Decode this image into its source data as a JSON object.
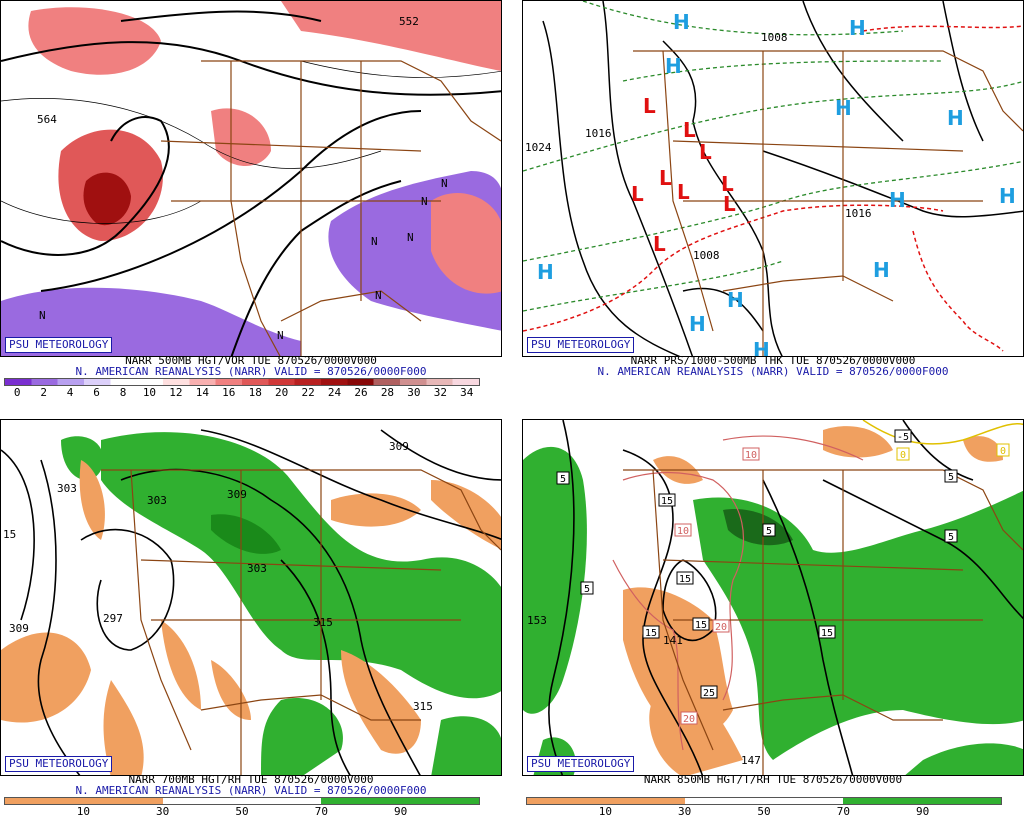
{
  "panels": [
    {
      "badge": "PSU METEOROLOGY",
      "title": "NARR 500MB HGT/VOR TUE 870526/0000V000",
      "subtitle": "N. AMERICAN REANALYSIS (NARR) VALID = 870526/0000F000",
      "labels": {
        "l1": "552",
        "l2": "564",
        "n": "N"
      },
      "colorbar": {
        "ticks": [
          "0",
          "2",
          "4",
          "6",
          "8",
          "10",
          "12",
          "14",
          "16",
          "18",
          "20",
          "22",
          "24",
          "26",
          "28",
          "30",
          "32",
          "34"
        ],
        "colors": [
          "#7a2fd0",
          "#9a6ae0",
          "#b8a0f0",
          "#dcd0fa",
          "#ffffff",
          "#ffffff",
          "#ffe0e0",
          "#f8b0b0",
          "#f08080",
          "#e05858",
          "#d03838",
          "#b82020",
          "#a01010",
          "#880808",
          "#b06060",
          "#d09090",
          "#e8b8b8",
          "#f8d8e0"
        ]
      }
    },
    {
      "badge": "PSU METEOROLOGY",
      "title": "NARR PRS/1000-500MB THK TUE 870526/0000V000",
      "subtitle": "N. AMERICAN REANALYSIS (NARR) VALID = 870526/0000F000",
      "labels": {
        "l1": "1024",
        "l2": "1016",
        "l3": "1008",
        "h": "H",
        "l": "L"
      }
    },
    {
      "badge": "PSU METEOROLOGY",
      "title": "NARR 700MB HGT/RH TUE 870526/0000V000",
      "subtitle": "N. AMERICAN REANALYSIS (NARR) VALID = 870526/0000F000",
      "labels": {
        "l1": "303",
        "l2": "309",
        "l3": "297",
        "l4": "315",
        "l5": "15"
      },
      "colorbar": {
        "ticks": [
          "10",
          "30",
          "50",
          "70",
          "90"
        ],
        "colors": [
          "#f0a060",
          "#f0a060",
          "#ffffff",
          "#ffffff",
          "#30b030",
          "#30b030"
        ]
      }
    },
    {
      "badge": "PSU METEOROLOGY",
      "title": "NARR 850MB HGT/T/RH TUE 870526/0000V000",
      "labels": {
        "l1": "153",
        "l2": "147",
        "l3": "141",
        "t1": "5",
        "t2": "10",
        "t3": "15",
        "t4": "20",
        "t5": "25",
        "t6": "-5",
        "t7": "0"
      },
      "colorbar": {
        "ticks": [
          "10",
          "30",
          "50",
          "70",
          "90"
        ],
        "colors": [
          "#f0a060",
          "#f0a060",
          "#ffffff",
          "#ffffff",
          "#30b030",
          "#30b030"
        ]
      }
    }
  ],
  "colors": {
    "badge": "#1a1aa8",
    "border": "#8b4513",
    "vort_pos": "#d03838",
    "vort_neg": "#9060e0",
    "rh_wet": "#30b030",
    "rh_dry": "#f0a060",
    "high": "#1e9ee0",
    "low": "#e01010"
  }
}
